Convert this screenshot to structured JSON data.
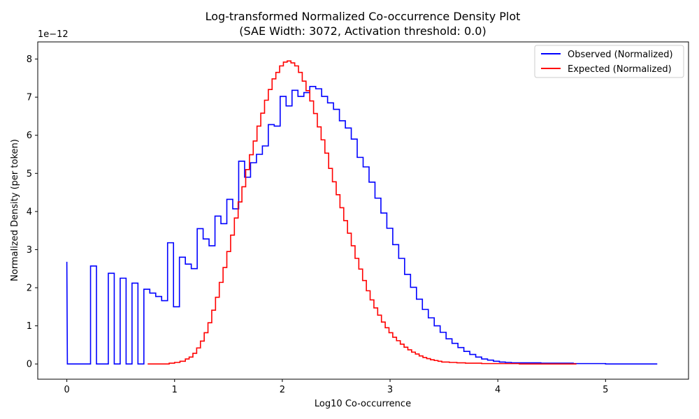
{
  "chart_data": {
    "type": "line",
    "title": "Log-transformed Normalized Co-occurrence Density Plot",
    "subtitle": "(SAE Width: 3072, Activation threshold: 0.0)",
    "xlabel": "Log10 Co-occurrence",
    "ylabel": "Normalized Density (per token)",
    "y_offset_label": "1e−12",
    "xlim": [
      -0.27,
      5.77
    ],
    "ylim": [
      -0.4,
      8.45
    ],
    "x_ticks": [
      0,
      1,
      2,
      3,
      4,
      5
    ],
    "x_tick_labels": [
      "0",
      "1",
      "2",
      "3",
      "4",
      "5"
    ],
    "y_ticks": [
      0,
      1,
      2,
      3,
      4,
      5,
      6,
      7,
      8
    ],
    "y_tick_labels": [
      "0",
      "1",
      "2",
      "3",
      "4",
      "5",
      "6",
      "7",
      "8"
    ],
    "grid": false,
    "legend_position": "top-right",
    "series": [
      {
        "name": "Observed (Normalized)",
        "color": "#0000ff",
        "style": "step",
        "points": [
          [
            0,
            2.68
          ],
          [
            0.005,
            0
          ],
          [
            0.22,
            0
          ],
          [
            0.22,
            2.57
          ],
          [
            0.275,
            2.57
          ],
          [
            0.275,
            0
          ],
          [
            0.385,
            0
          ],
          [
            0.385,
            2.38
          ],
          [
            0.44,
            2.38
          ],
          [
            0.44,
            0
          ],
          [
            0.495,
            0
          ],
          [
            0.495,
            2.25
          ],
          [
            0.55,
            2.25
          ],
          [
            0.55,
            0
          ],
          [
            0.605,
            0
          ],
          [
            0.605,
            2.12
          ],
          [
            0.66,
            2.12
          ],
          [
            0.66,
            0
          ],
          [
            0.715,
            0
          ],
          [
            0.715,
            1.96
          ],
          [
            0.77,
            1.96
          ],
          [
            0.77,
            1.86
          ],
          [
            0.825,
            1.86
          ],
          [
            0.825,
            1.77
          ],
          [
            0.88,
            1.77
          ],
          [
            0.88,
            1.66
          ],
          [
            0.935,
            1.66
          ],
          [
            0.935,
            3.18
          ],
          [
            0.99,
            3.18
          ],
          [
            0.99,
            1.5
          ],
          [
            1.045,
            1.5
          ],
          [
            1.045,
            2.8
          ],
          [
            1.1,
            2.8
          ],
          [
            1.1,
            2.62
          ],
          [
            1.155,
            2.62
          ],
          [
            1.155,
            2.5
          ],
          [
            1.21,
            2.5
          ],
          [
            1.21,
            3.55
          ],
          [
            1.265,
            3.55
          ],
          [
            1.265,
            3.28
          ],
          [
            1.32,
            3.28
          ],
          [
            1.32,
            3.1
          ],
          [
            1.375,
            3.1
          ],
          [
            1.375,
            3.88
          ],
          [
            1.43,
            3.88
          ],
          [
            1.43,
            3.68
          ],
          [
            1.485,
            3.68
          ],
          [
            1.485,
            4.32
          ],
          [
            1.54,
            4.32
          ],
          [
            1.54,
            4.07
          ],
          [
            1.595,
            4.07
          ],
          [
            1.595,
            5.32
          ],
          [
            1.65,
            5.32
          ],
          [
            1.65,
            4.9
          ],
          [
            1.705,
            4.9
          ],
          [
            1.705,
            5.28
          ],
          [
            1.76,
            5.28
          ],
          [
            1.76,
            5.5
          ],
          [
            1.815,
            5.5
          ],
          [
            1.815,
            5.72
          ],
          [
            1.87,
            5.72
          ],
          [
            1.87,
            6.28
          ],
          [
            1.925,
            6.28
          ],
          [
            1.925,
            6.24
          ],
          [
            1.98,
            6.24
          ],
          [
            1.98,
            7.02
          ],
          [
            2.035,
            7.02
          ],
          [
            2.035,
            6.77
          ],
          [
            2.09,
            6.77
          ],
          [
            2.09,
            7.18
          ],
          [
            2.145,
            7.18
          ],
          [
            2.145,
            7.02
          ],
          [
            2.2,
            7.02
          ],
          [
            2.2,
            7.12
          ],
          [
            2.255,
            7.12
          ],
          [
            2.255,
            7.28
          ],
          [
            2.31,
            7.28
          ],
          [
            2.31,
            7.22
          ],
          [
            2.365,
            7.22
          ],
          [
            2.365,
            7.02
          ],
          [
            2.42,
            7.02
          ],
          [
            2.42,
            6.85
          ],
          [
            2.475,
            6.85
          ],
          [
            2.475,
            6.68
          ],
          [
            2.53,
            6.68
          ],
          [
            2.53,
            6.38
          ],
          [
            2.585,
            6.38
          ],
          [
            2.585,
            6.19
          ],
          [
            2.64,
            6.19
          ],
          [
            2.64,
            5.9
          ],
          [
            2.695,
            5.9
          ],
          [
            2.695,
            5.42
          ],
          [
            2.75,
            5.42
          ],
          [
            2.75,
            5.17
          ],
          [
            2.805,
            5.17
          ],
          [
            2.805,
            4.77
          ],
          [
            2.86,
            4.77
          ],
          [
            2.86,
            4.35
          ],
          [
            2.915,
            4.35
          ],
          [
            2.915,
            3.96
          ],
          [
            2.97,
            3.96
          ],
          [
            2.97,
            3.56
          ],
          [
            3.025,
            3.56
          ],
          [
            3.025,
            3.13
          ],
          [
            3.08,
            3.13
          ],
          [
            3.08,
            2.77
          ],
          [
            3.135,
            2.77
          ],
          [
            3.135,
            2.35
          ],
          [
            3.19,
            2.35
          ],
          [
            3.19,
            2.01
          ],
          [
            3.245,
            2.01
          ],
          [
            3.245,
            1.7
          ],
          [
            3.3,
            1.7
          ],
          [
            3.3,
            1.43
          ],
          [
            3.355,
            1.43
          ],
          [
            3.355,
            1.21
          ],
          [
            3.41,
            1.21
          ],
          [
            3.41,
            1.0
          ],
          [
            3.465,
            1.0
          ],
          [
            3.465,
            0.83
          ],
          [
            3.52,
            0.83
          ],
          [
            3.52,
            0.66
          ],
          [
            3.575,
            0.66
          ],
          [
            3.575,
            0.54
          ],
          [
            3.63,
            0.54
          ],
          [
            3.63,
            0.43
          ],
          [
            3.685,
            0.43
          ],
          [
            3.685,
            0.33
          ],
          [
            3.74,
            0.33
          ],
          [
            3.74,
            0.25
          ],
          [
            3.795,
            0.25
          ],
          [
            3.795,
            0.18
          ],
          [
            3.85,
            0.18
          ],
          [
            3.85,
            0.13
          ],
          [
            3.905,
            0.13
          ],
          [
            3.905,
            0.1
          ],
          [
            3.96,
            0.1
          ],
          [
            3.96,
            0.07
          ],
          [
            4.015,
            0.07
          ],
          [
            4.015,
            0.05
          ],
          [
            4.07,
            0.05
          ],
          [
            4.07,
            0.04
          ],
          [
            4.125,
            0.04
          ],
          [
            4.125,
            0.03
          ],
          [
            4.4,
            0.03
          ],
          [
            4.4,
            0.02
          ],
          [
            4.7,
            0.02
          ],
          [
            4.7,
            0.01
          ],
          [
            5.0,
            0.01
          ],
          [
            5.0,
            0.0
          ],
          [
            5.48,
            0.0
          ]
        ]
      },
      {
        "name": "Expected (Normalized)",
        "color": "#ff0000",
        "style": "step",
        "points": [
          [
            0.75,
            0.0
          ],
          [
            0.95,
            0.0
          ],
          [
            0.95,
            0.02
          ],
          [
            1.0,
            0.02
          ],
          [
            1.0,
            0.04
          ],
          [
            1.05,
            0.04
          ],
          [
            1.05,
            0.07
          ],
          [
            1.1,
            0.07
          ],
          [
            1.1,
            0.13
          ],
          [
            1.135,
            0.13
          ],
          [
            1.135,
            0.18
          ],
          [
            1.17,
            0.18
          ],
          [
            1.17,
            0.28
          ],
          [
            1.205,
            0.28
          ],
          [
            1.205,
            0.42
          ],
          [
            1.24,
            0.42
          ],
          [
            1.24,
            0.6
          ],
          [
            1.275,
            0.6
          ],
          [
            1.275,
            0.82
          ],
          [
            1.31,
            0.82
          ],
          [
            1.31,
            1.08
          ],
          [
            1.345,
            1.08
          ],
          [
            1.345,
            1.41
          ],
          [
            1.38,
            1.41
          ],
          [
            1.38,
            1.75
          ],
          [
            1.415,
            1.75
          ],
          [
            1.415,
            2.14
          ],
          [
            1.45,
            2.14
          ],
          [
            1.45,
            2.53
          ],
          [
            1.485,
            2.53
          ],
          [
            1.485,
            2.95
          ],
          [
            1.52,
            2.95
          ],
          [
            1.52,
            3.38
          ],
          [
            1.555,
            3.38
          ],
          [
            1.555,
            3.83
          ],
          [
            1.59,
            3.83
          ],
          [
            1.59,
            4.25
          ],
          [
            1.625,
            4.25
          ],
          [
            1.625,
            4.65
          ],
          [
            1.66,
            4.65
          ],
          [
            1.66,
            5.1
          ],
          [
            1.695,
            5.1
          ],
          [
            1.695,
            5.49
          ],
          [
            1.73,
            5.49
          ],
          [
            1.73,
            5.85
          ],
          [
            1.765,
            5.85
          ],
          [
            1.765,
            6.24
          ],
          [
            1.8,
            6.24
          ],
          [
            1.8,
            6.58
          ],
          [
            1.835,
            6.58
          ],
          [
            1.835,
            6.92
          ],
          [
            1.87,
            6.92
          ],
          [
            1.87,
            7.2
          ],
          [
            1.905,
            7.2
          ],
          [
            1.905,
            7.48
          ],
          [
            1.94,
            7.48
          ],
          [
            1.94,
            7.65
          ],
          [
            1.975,
            7.65
          ],
          [
            1.975,
            7.82
          ],
          [
            2.01,
            7.82
          ],
          [
            2.01,
            7.92
          ],
          [
            2.045,
            7.92
          ],
          [
            2.045,
            7.95
          ],
          [
            2.08,
            7.95
          ],
          [
            2.08,
            7.9
          ],
          [
            2.115,
            7.9
          ],
          [
            2.115,
            7.82
          ],
          [
            2.15,
            7.82
          ],
          [
            2.15,
            7.65
          ],
          [
            2.185,
            7.65
          ],
          [
            2.185,
            7.42
          ],
          [
            2.22,
            7.42
          ],
          [
            2.22,
            7.17
          ],
          [
            2.255,
            7.17
          ],
          [
            2.255,
            6.9
          ],
          [
            2.29,
            6.9
          ],
          [
            2.29,
            6.57
          ],
          [
            2.325,
            6.57
          ],
          [
            2.325,
            6.22
          ],
          [
            2.36,
            6.22
          ],
          [
            2.36,
            5.88
          ],
          [
            2.395,
            5.88
          ],
          [
            2.395,
            5.53
          ],
          [
            2.43,
            5.53
          ],
          [
            2.43,
            5.13
          ],
          [
            2.465,
            5.13
          ],
          [
            2.465,
            4.78
          ],
          [
            2.5,
            4.78
          ],
          [
            2.5,
            4.44
          ],
          [
            2.535,
            4.44
          ],
          [
            2.535,
            4.1
          ],
          [
            2.57,
            4.1
          ],
          [
            2.57,
            3.76
          ],
          [
            2.605,
            3.76
          ],
          [
            2.605,
            3.43
          ],
          [
            2.64,
            3.43
          ],
          [
            2.64,
            3.1
          ],
          [
            2.675,
            3.1
          ],
          [
            2.675,
            2.77
          ],
          [
            2.71,
            2.77
          ],
          [
            2.71,
            2.49
          ],
          [
            2.745,
            2.49
          ],
          [
            2.745,
            2.19
          ],
          [
            2.78,
            2.19
          ],
          [
            2.78,
            1.92
          ],
          [
            2.815,
            1.92
          ],
          [
            2.815,
            1.68
          ],
          [
            2.85,
            1.68
          ],
          [
            2.85,
            1.47
          ],
          [
            2.885,
            1.47
          ],
          [
            2.885,
            1.28
          ],
          [
            2.92,
            1.28
          ],
          [
            2.92,
            1.1
          ],
          [
            2.955,
            1.1
          ],
          [
            2.955,
            0.95
          ],
          [
            2.99,
            0.95
          ],
          [
            2.99,
            0.82
          ],
          [
            3.025,
            0.82
          ],
          [
            3.025,
            0.7
          ],
          [
            3.06,
            0.7
          ],
          [
            3.06,
            0.61
          ],
          [
            3.095,
            0.61
          ],
          [
            3.095,
            0.52
          ],
          [
            3.13,
            0.52
          ],
          [
            3.13,
            0.44
          ],
          [
            3.165,
            0.44
          ],
          [
            3.165,
            0.37
          ],
          [
            3.2,
            0.37
          ],
          [
            3.2,
            0.31
          ],
          [
            3.235,
            0.31
          ],
          [
            3.235,
            0.26
          ],
          [
            3.27,
            0.26
          ],
          [
            3.27,
            0.21
          ],
          [
            3.305,
            0.21
          ],
          [
            3.305,
            0.17
          ],
          [
            3.34,
            0.17
          ],
          [
            3.34,
            0.14
          ],
          [
            3.375,
            0.14
          ],
          [
            3.375,
            0.11
          ],
          [
            3.41,
            0.11
          ],
          [
            3.41,
            0.09
          ],
          [
            3.445,
            0.09
          ],
          [
            3.445,
            0.07
          ],
          [
            3.48,
            0.07
          ],
          [
            3.48,
            0.05
          ],
          [
            3.55,
            0.05
          ],
          [
            3.55,
            0.04
          ],
          [
            3.62,
            0.04
          ],
          [
            3.62,
            0.03
          ],
          [
            3.7,
            0.03
          ],
          [
            3.7,
            0.02
          ],
          [
            3.85,
            0.02
          ],
          [
            3.85,
            0.01
          ],
          [
            4.2,
            0.01
          ],
          [
            4.2,
            0.0
          ],
          [
            4.73,
            0.0
          ]
        ]
      }
    ]
  }
}
